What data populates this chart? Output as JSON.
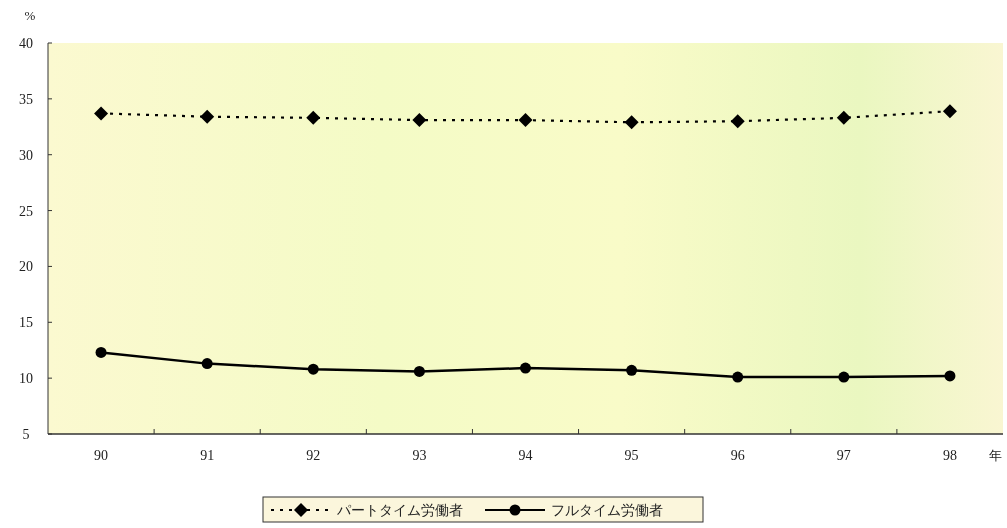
{
  "chart_data": {
    "type": "line",
    "xlabel": "年",
    "ylabel": "%",
    "categories": [
      "90",
      "91",
      "92",
      "93",
      "94",
      "95",
      "96",
      "97",
      "98"
    ],
    "ylim": [
      5,
      40
    ],
    "yticks": [
      5,
      10,
      15,
      20,
      25,
      30,
      35,
      40
    ],
    "legend": "bottom",
    "series": [
      {
        "name": "パートタイム労働者",
        "color": "#000000",
        "line_style": "dotted",
        "marker": "diamond",
        "values": [
          33.7,
          33.4,
          33.3,
          33.1,
          33.1,
          32.9,
          33.0,
          33.3,
          33.9
        ]
      },
      {
        "name": "フルタイム労働者",
        "color": "#000000",
        "line_style": "solid",
        "marker": "circle",
        "values": [
          12.3,
          11.3,
          10.8,
          10.6,
          10.9,
          10.7,
          10.1,
          10.1,
          10.2
        ]
      }
    ]
  }
}
